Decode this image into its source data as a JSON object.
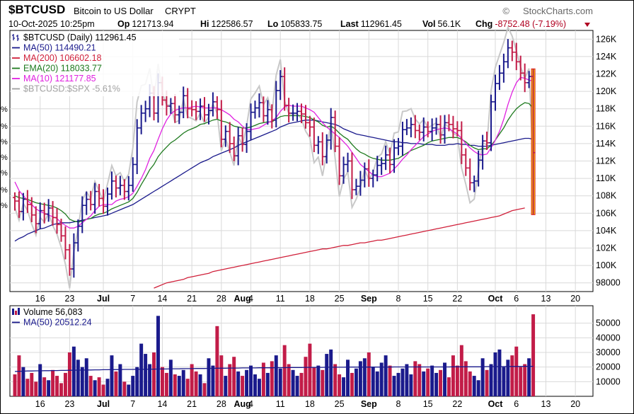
{
  "header": {
    "symbol": "$BTCUSD",
    "name": "Bitcoin to US Dollar",
    "exchange": "CRYPT",
    "brand": "StockCharts.com",
    "brand_symbol": "©",
    "timestamp": "10-Oct-2025 10:25pm",
    "quote": [
      {
        "label": "Op",
        "value": "121713.94"
      },
      {
        "label": "Hi",
        "value": "122586.57"
      },
      {
        "label": "Lo",
        "value": "105833.75"
      },
      {
        "label": "Last",
        "value": "112961.45"
      },
      {
        "label": "Vol",
        "value": "56.1K"
      },
      {
        "label": "Chg",
        "value": "-8752.48 (-7.19%)"
      }
    ],
    "change_color": "#b00020"
  },
  "legend_main": [
    {
      "text": "$BTCUSD (Daily) 112961.45",
      "color": "#000000",
      "icon": "bar-chart-icon"
    },
    {
      "text": "MA(50) 114490.21",
      "color": "#1a1a8c",
      "icon": "line-swatch"
    },
    {
      "text": "MA(200) 106602.18",
      "color": "#d0203a",
      "icon": "line-swatch"
    },
    {
      "text": "EMA(20) 118033.77",
      "color": "#1e7a1e",
      "icon": "line-swatch"
    },
    {
      "text": "MA(10) 121177.85",
      "color": "#e020e0",
      "icon": "line-swatch"
    },
    {
      "text": "$BTCUSD:$SPX -5.61%",
      "color": "#a0a0a0",
      "icon": "line-swatch"
    }
  ],
  "legend_volume": [
    {
      "text": "Volume 56,083",
      "color": "#000000",
      "icon": "volume-bars-icon"
    },
    {
      "text": "MA(50) 20512.24",
      "color": "#1a1a8c",
      "icon": "line-swatch"
    }
  ],
  "colors": {
    "up": "#1a1a8c",
    "down": "#c21c48",
    "highlight": "#f4e600",
    "highlight_edge": "#e01818",
    "grid": "#d9d9d9"
  },
  "chart_data": [
    {
      "type": "ohlc",
      "title": "$BTCUSD (Daily)",
      "ylim": [
        97000,
        127000
      ],
      "y_ticks": [
        98000,
        100000,
        102000,
        104000,
        106000,
        108000,
        110000,
        112000,
        114000,
        116000,
        118000,
        120000,
        122000,
        124000,
        126000
      ],
      "y_tick_labels": [
        "98000",
        "100K",
        "102K",
        "104K",
        "106K",
        "108K",
        "110K",
        "112K",
        "114K",
        "116K",
        "118K",
        "120K",
        "122K",
        "124K",
        "126K"
      ],
      "x_tick_labels": [
        {
          "i": 6,
          "t": "16"
        },
        {
          "i": 13,
          "t": "23"
        },
        {
          "i": 21,
          "t": "Jul"
        },
        {
          "i": 28,
          "t": "7"
        },
        {
          "i": 35,
          "t": "14"
        },
        {
          "i": 42,
          "t": "21"
        },
        {
          "i": 49,
          "t": "28"
        },
        {
          "i": 54,
          "t": "Aug"
        },
        {
          "i": 56,
          "t": "4"
        },
        {
          "i": 63,
          "t": "11"
        },
        {
          "i": 70,
          "t": "18"
        },
        {
          "i": 77,
          "t": "25"
        },
        {
          "i": 84,
          "t": "Sep"
        },
        {
          "i": 91,
          "t": "8"
        },
        {
          "i": 98,
          "t": "15"
        },
        {
          "i": 105,
          "t": "22"
        },
        {
          "i": 114,
          "t": "Oct"
        },
        {
          "i": 119,
          "t": "6"
        },
        {
          "i": 126,
          "t": "13"
        },
        {
          "i": 133,
          "t": "20"
        }
      ],
      "grid": true,
      "grid_x": [
        6,
        13,
        21,
        28,
        35,
        42,
        49,
        56,
        63,
        70,
        77,
        84,
        91,
        98,
        105,
        114,
        119,
        126,
        133
      ],
      "bars_last_index": 123,
      "x_slots": 137,
      "close": [
        107400,
        106200,
        107600,
        107000,
        105800,
        104800,
        106300,
        105900,
        106600,
        105500,
        104700,
        103400,
        101800,
        99600,
        102600,
        104500,
        106900,
        107600,
        107000,
        108500,
        107700,
        106800,
        108200,
        109700,
        108900,
        109200,
        108500,
        109200,
        111600,
        115800,
        117500,
        118000,
        119800,
        117500,
        121000,
        119000,
        118300,
        118600,
        117300,
        117600,
        119500,
        118000,
        117900,
        117700,
        118300,
        117300,
        117800,
        118800,
        117900,
        114500,
        115400,
        114000,
        112600,
        114900,
        113900,
        115400,
        117600,
        118100,
        118700,
        117200,
        117900,
        116700,
        120100,
        121700,
        118400,
        117500,
        117500,
        117700,
        117400,
        116400,
        115900,
        113800,
        114200,
        112500,
        114400,
        117000,
        113700,
        110300,
        111600,
        112000,
        108700,
        109100,
        109800,
        111100,
        110000,
        110400,
        111500,
        111700,
        112700,
        111600,
        113500,
        113700,
        115600,
        115800,
        116200,
        115500,
        115300,
        115900,
        115400,
        115800,
        116200,
        115000,
        116400,
        116200,
        115700,
        115500,
        112700,
        111200,
        109500,
        109700,
        112100,
        114300,
        114100,
        118800,
        120900,
        122100,
        123400,
        125000,
        124500,
        123400,
        122100,
        121000,
        121713,
        112961
      ],
      "ma10": [
        109600,
        108600,
        108000,
        107500,
        107000,
        106500,
        106200,
        106000,
        105800,
        105600,
        105400,
        104900,
        104600,
        104300,
        104300,
        104500,
        104900,
        105300,
        105700,
        106300,
        106800,
        107000,
        107000,
        107000,
        107400,
        107600,
        107700,
        107900,
        108300,
        109100,
        110000,
        111000,
        112300,
        113200,
        114500,
        115700,
        116700,
        117400,
        117800,
        118000,
        118100,
        118100,
        118200,
        118300,
        118200,
        118100,
        118100,
        118100,
        118100,
        117900,
        117600,
        117300,
        116800,
        116500,
        116000,
        115600,
        115600,
        115700,
        115800,
        116100,
        116400,
        116600,
        117000,
        117700,
        118200,
        118400,
        118300,
        118300,
        118300,
        118100,
        117900,
        117600,
        117000,
        116400,
        115900,
        115500,
        115100,
        114700,
        114200,
        113700,
        113000,
        112300,
        111600,
        111200,
        110800,
        110400,
        110200,
        110200,
        110400,
        110600,
        111100,
        111600,
        112200,
        112700,
        113300,
        113800,
        114300,
        114800,
        115100,
        115400,
        115600,
        115700,
        115800,
        115700,
        115400,
        115100,
        114600,
        114000,
        113500,
        113100,
        112800,
        112700,
        112800,
        113500,
        114400,
        115400,
        116800,
        118500,
        119900,
        121000,
        121600,
        121500,
        121300,
        121178
      ],
      "ema20": [
        108000,
        107800,
        107700,
        107600,
        107400,
        107200,
        107100,
        107000,
        106900,
        106800,
        106600,
        106300,
        105900,
        105300,
        105100,
        105000,
        105100,
        105300,
        105400,
        105700,
        105900,
        106000,
        106200,
        106500,
        106700,
        106900,
        107100,
        107300,
        107700,
        108400,
        109300,
        110100,
        111000,
        111600,
        112500,
        113100,
        113600,
        114100,
        114400,
        114800,
        115200,
        115500,
        115700,
        115900,
        116200,
        116300,
        116500,
        116700,
        116800,
        116600,
        116500,
        116300,
        116000,
        115900,
        115800,
        115800,
        115900,
        116100,
        116300,
        116400,
        116500,
        116500,
        116800,
        117100,
        117200,
        117200,
        117200,
        117200,
        117200,
        117100,
        117000,
        116700,
        116500,
        116100,
        115900,
        116000,
        115700,
        115200,
        114800,
        114500,
        113900,
        113400,
        113000,
        112800,
        112500,
        112300,
        112200,
        112100,
        112100,
        112100,
        112200,
        112300,
        112600,
        112900,
        113200,
        113400,
        113600,
        113800,
        114100,
        114300,
        114400,
        114500,
        114600,
        114700,
        114700,
        114700,
        114500,
        114200,
        113800,
        113500,
        113300,
        113400,
        113400,
        113800,
        114400,
        115100,
        115800,
        116700,
        117400,
        118000,
        118400,
        118700,
        118600,
        118034
      ],
      "ma50": [
        102800,
        103100,
        103300,
        103600,
        103800,
        104000,
        104200,
        104300,
        104500,
        104700,
        104800,
        104900,
        104900,
        104900,
        105000,
        105100,
        105200,
        105300,
        105400,
        105500,
        105600,
        105700,
        105800,
        106000,
        106200,
        106400,
        106600,
        106800,
        107000,
        107300,
        107600,
        107900,
        108200,
        108500,
        108800,
        109100,
        109400,
        109700,
        110000,
        110300,
        110600,
        110900,
        111200,
        111500,
        111800,
        112000,
        112200,
        112500,
        112700,
        112900,
        113100,
        113300,
        113500,
        113800,
        114000,
        114200,
        114400,
        114600,
        114800,
        115000,
        115200,
        115400,
        115600,
        115900,
        116100,
        116300,
        116400,
        116500,
        116600,
        116700,
        116700,
        116700,
        116600,
        116500,
        116400,
        116300,
        116200,
        116000,
        115700,
        115500,
        115300,
        115100,
        115000,
        114900,
        114800,
        114700,
        114600,
        114500,
        114400,
        114300,
        114200,
        114200,
        114100,
        114100,
        114000,
        114000,
        114000,
        113900,
        113900,
        113900,
        113800,
        113800,
        113800,
        113900,
        113900,
        114000,
        113900,
        113900,
        113800,
        113800,
        113700,
        113700,
        113700,
        113800,
        113900,
        114000,
        114100,
        114200,
        114300,
        114400,
        114500,
        114600,
        114600,
        114490
      ],
      "ma200": [
        null,
        null,
        null,
        null,
        null,
        null,
        null,
        null,
        null,
        null,
        null,
        null,
        null,
        null,
        null,
        null,
        null,
        null,
        null,
        null,
        null,
        null,
        null,
        null,
        null,
        null,
        null,
        null,
        null,
        null,
        null,
        null,
        null,
        97400,
        97600,
        97800,
        98000,
        98100,
        98200,
        98300,
        98400,
        98600,
        98700,
        98800,
        98900,
        99000,
        99100,
        99300,
        99400,
        99500,
        99600,
        99700,
        99800,
        99900,
        100000,
        100100,
        100200,
        100300,
        100400,
        100500,
        100600,
        100700,
        100800,
        100900,
        101000,
        101100,
        101200,
        101300,
        101400,
        101500,
        101600,
        101700,
        101800,
        101900,
        101900,
        102000,
        102100,
        102200,
        102300,
        102300,
        102400,
        102500,
        102600,
        102600,
        102700,
        102800,
        102900,
        102900,
        103000,
        103100,
        103200,
        103300,
        103400,
        103500,
        103600,
        103700,
        103800,
        103900,
        104000,
        104100,
        104200,
        104300,
        104400,
        104500,
        104600,
        104700,
        104800,
        104900,
        105000,
        105100,
        105200,
        105300,
        105400,
        105500,
        105600,
        105700,
        105900,
        106100,
        106300,
        106400,
        106500,
        106602
      ]
    },
    {
      "type": "bar",
      "title": "Volume",
      "ylim": [
        0,
        60000
      ],
      "y_ticks": [
        10000,
        20000,
        30000,
        40000,
        50000
      ],
      "y_tick_labels": [
        "10000",
        "20000",
        "30000",
        "40000",
        "50000"
      ],
      "volume": [
        15000,
        28000,
        20000,
        12000,
        16000,
        10000,
        22000,
        13000,
        11000,
        18000,
        14000,
        9000,
        16000,
        30000,
        34000,
        25000,
        20000,
        26000,
        14000,
        11000,
        13000,
        8000,
        12000,
        28000,
        17000,
        22000,
        10000,
        8000,
        14000,
        20000,
        36000,
        29000,
        22000,
        30000,
        55000,
        20000,
        16000,
        25000,
        15000,
        14000,
        18000,
        12000,
        22000,
        17000,
        15000,
        9000,
        26000,
        21000,
        48000,
        28000,
        14000,
        22000,
        27000,
        17000,
        14000,
        18000,
        21000,
        15000,
        12000,
        23000,
        16000,
        24000,
        28000,
        19000,
        35000,
        22000,
        18000,
        14000,
        16000,
        27000,
        36000,
        20000,
        21000,
        18000,
        29000,
        32000,
        22000,
        15000,
        13000,
        25000,
        16000,
        19000,
        24000,
        26000,
        30000,
        20000,
        17000,
        23000,
        28000,
        21000,
        14000,
        16000,
        19000,
        22000,
        15000,
        24000,
        22000,
        17000,
        19000,
        21000,
        16000,
        18000,
        23000,
        13000,
        28000,
        21000,
        35000,
        24000,
        17000,
        14000,
        11000,
        26000,
        18000,
        22000,
        30000,
        32000,
        20000,
        25000,
        28000,
        34000,
        20000,
        22000,
        26000,
        56083
      ],
      "ma50": [
        17000,
        17100,
        17200,
        17300,
        17300,
        17400,
        17400,
        17500,
        17500,
        17600,
        17600,
        17700,
        17700,
        17800,
        17800,
        17900,
        17900,
        18000,
        18000,
        18100,
        18100,
        18200,
        18200,
        18300,
        18300,
        18300,
        18400,
        18400,
        18400,
        18500,
        18500,
        18500,
        18600,
        18600,
        18700,
        18700,
        18700,
        18800,
        18800,
        18800,
        18900,
        18900,
        18900,
        19000,
        19000,
        19000,
        19100,
        19100,
        19200,
        19200,
        19200,
        19300,
        19300,
        19300,
        19400,
        19400,
        19400,
        19400,
        19500,
        19500,
        19500,
        19500,
        19600,
        19600,
        19600,
        19700,
        19700,
        19700,
        19700,
        19800,
        19800,
        19800,
        19800,
        19800,
        19900,
        19900,
        19900,
        19900,
        19900,
        20000,
        20000,
        20000,
        20000,
        20000,
        20000,
        20000,
        20000,
        20000,
        20000,
        20000,
        20100,
        20100,
        20100,
        20100,
        20100,
        20100,
        20100,
        20100,
        20100,
        20100,
        20100,
        20100,
        20100,
        20100,
        20200,
        20200,
        20200,
        20200,
        20200,
        20200,
        20200,
        20200,
        20300,
        20300,
        20300,
        20300,
        20300,
        20400,
        20400,
        20400,
        20400,
        20500,
        20500,
        20512
      ]
    }
  ],
  "left_edge_ticks": [
    "%",
    "%",
    "%",
    "%",
    "%",
    "%",
    "%"
  ]
}
